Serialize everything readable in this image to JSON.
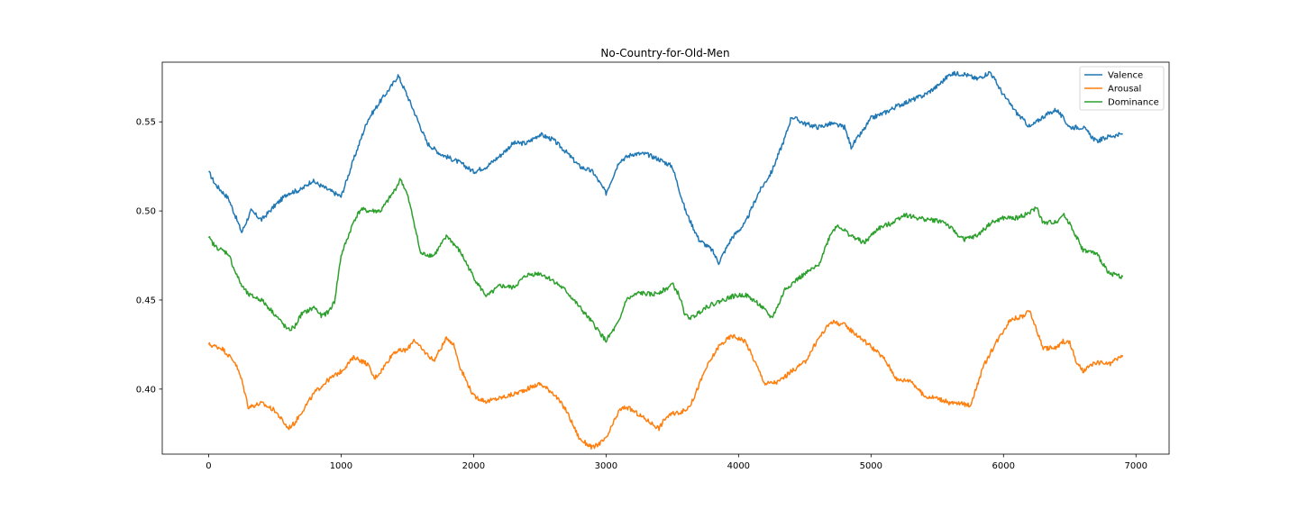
{
  "chart_data": {
    "type": "line",
    "title": "No-Country-for-Old-Men",
    "xlim": [
      -350,
      7250
    ],
    "ylim": [
      0.3635,
      0.5835
    ],
    "xticks": [
      0,
      1000,
      2000,
      3000,
      4000,
      5000,
      6000,
      7000
    ],
    "xtick_labels": [
      "0",
      "1000",
      "2000",
      "3000",
      "4000",
      "5000",
      "6000",
      "7000"
    ],
    "yticks": [
      0.4,
      0.45,
      0.5,
      0.55
    ],
    "ytick_labels": [
      "0.40",
      "0.45",
      "0.50",
      "0.55"
    ],
    "grid": false,
    "legend_position": "top-right",
    "series": [
      {
        "name": "Valence",
        "color": "#1f77b4",
        "x": [
          0,
          50,
          150,
          250,
          320,
          400,
          500,
          600,
          700,
          780,
          900,
          1000,
          1100,
          1200,
          1300,
          1380,
          1430,
          1480,
          1550,
          1650,
          1750,
          1900,
          2000,
          2100,
          2200,
          2300,
          2400,
          2500,
          2600,
          2700,
          2800,
          2900,
          3000,
          3100,
          3200,
          3300,
          3400,
          3500,
          3600,
          3700,
          3800,
          3850,
          3950,
          4050,
          4150,
          4250,
          4350,
          4400,
          4500,
          4600,
          4700,
          4800,
          4850,
          4950,
          5000,
          5100,
          5200,
          5300,
          5400,
          5500,
          5600,
          5700,
          5800,
          5900,
          6000,
          6100,
          6200,
          6300,
          6400,
          6500,
          6600,
          6700,
          6800,
          6900
        ],
        "y": [
          0.522,
          0.515,
          0.507,
          0.488,
          0.5,
          0.495,
          0.503,
          0.51,
          0.512,
          0.517,
          0.512,
          0.508,
          0.53,
          0.551,
          0.562,
          0.57,
          0.576,
          0.568,
          0.556,
          0.538,
          0.532,
          0.527,
          0.522,
          0.525,
          0.531,
          0.538,
          0.538,
          0.543,
          0.54,
          0.533,
          0.525,
          0.522,
          0.51,
          0.528,
          0.532,
          0.532,
          0.529,
          0.525,
          0.5,
          0.484,
          0.478,
          0.471,
          0.485,
          0.493,
          0.51,
          0.522,
          0.541,
          0.553,
          0.549,
          0.547,
          0.549,
          0.547,
          0.536,
          0.546,
          0.552,
          0.555,
          0.559,
          0.562,
          0.565,
          0.57,
          0.577,
          0.577,
          0.574,
          0.578,
          0.565,
          0.555,
          0.547,
          0.553,
          0.557,
          0.547,
          0.547,
          0.539,
          0.542,
          0.543
        ]
      },
      {
        "name": "Arousal",
        "color": "#ff7f0e",
        "x": [
          0,
          50,
          100,
          200,
          250,
          300,
          400,
          500,
          600,
          650,
          700,
          800,
          900,
          1000,
          1100,
          1200,
          1250,
          1300,
          1400,
          1500,
          1550,
          1600,
          1700,
          1800,
          1850,
          1900,
          2000,
          2100,
          2200,
          2300,
          2400,
          2500,
          2600,
          2700,
          2800,
          2900,
          3000,
          3100,
          3150,
          3200,
          3300,
          3400,
          3450,
          3500,
          3600,
          3650,
          3750,
          3850,
          3950,
          4050,
          4150,
          4200,
          4300,
          4400,
          4500,
          4600,
          4700,
          4800,
          4900,
          5000,
          5100,
          5200,
          5300,
          5400,
          5500,
          5600,
          5650,
          5750,
          5850,
          5950,
          6050,
          6150,
          6200,
          6250,
          6300,
          6400,
          6450,
          6500,
          6550,
          6600,
          6700,
          6800,
          6900
        ],
        "y": [
          0.425,
          0.424,
          0.423,
          0.415,
          0.405,
          0.39,
          0.392,
          0.388,
          0.378,
          0.381,
          0.387,
          0.398,
          0.405,
          0.41,
          0.418,
          0.414,
          0.406,
          0.41,
          0.421,
          0.422,
          0.428,
          0.423,
          0.416,
          0.429,
          0.425,
          0.412,
          0.396,
          0.393,
          0.395,
          0.397,
          0.4,
          0.403,
          0.398,
          0.388,
          0.372,
          0.367,
          0.372,
          0.388,
          0.39,
          0.388,
          0.383,
          0.378,
          0.384,
          0.386,
          0.388,
          0.393,
          0.411,
          0.424,
          0.43,
          0.427,
          0.411,
          0.403,
          0.404,
          0.41,
          0.415,
          0.428,
          0.438,
          0.436,
          0.43,
          0.424,
          0.417,
          0.405,
          0.405,
          0.396,
          0.395,
          0.392,
          0.392,
          0.391,
          0.413,
          0.427,
          0.439,
          0.441,
          0.444,
          0.433,
          0.423,
          0.423,
          0.427,
          0.426,
          0.415,
          0.41,
          0.415,
          0.414,
          0.419
        ]
      },
      {
        "name": "Dominance",
        "color": "#2ca02c",
        "x": [
          0,
          50,
          150,
          200,
          250,
          300,
          400,
          500,
          600,
          650,
          700,
          800,
          850,
          900,
          950,
          1000,
          1100,
          1150,
          1200,
          1300,
          1400,
          1450,
          1500,
          1550,
          1600,
          1700,
          1800,
          1900,
          2000,
          2050,
          2100,
          2200,
          2300,
          2400,
          2500,
          2600,
          2700,
          2800,
          2900,
          3000,
          3100,
          3150,
          3250,
          3350,
          3450,
          3500,
          3550,
          3600,
          3650,
          3750,
          3850,
          3950,
          4050,
          4150,
          4250,
          4300,
          4350,
          4450,
          4550,
          4600,
          4700,
          4750,
          4850,
          4950,
          5050,
          5150,
          5250,
          5350,
          5450,
          5550,
          5650,
          5700,
          5800,
          5900,
          6000,
          6100,
          6200,
          6250,
          6300,
          6400,
          6450,
          6500,
          6600,
          6700,
          6800,
          6900
        ],
        "y": [
          0.485,
          0.48,
          0.476,
          0.466,
          0.458,
          0.453,
          0.45,
          0.442,
          0.433,
          0.435,
          0.442,
          0.446,
          0.441,
          0.443,
          0.449,
          0.475,
          0.495,
          0.501,
          0.5,
          0.5,
          0.511,
          0.518,
          0.509,
          0.494,
          0.476,
          0.475,
          0.486,
          0.477,
          0.463,
          0.457,
          0.452,
          0.458,
          0.457,
          0.464,
          0.465,
          0.461,
          0.455,
          0.446,
          0.437,
          0.427,
          0.438,
          0.45,
          0.454,
          0.453,
          0.456,
          0.459,
          0.453,
          0.441,
          0.44,
          0.446,
          0.449,
          0.452,
          0.453,
          0.448,
          0.44,
          0.447,
          0.456,
          0.462,
          0.467,
          0.469,
          0.488,
          0.492,
          0.486,
          0.482,
          0.49,
          0.493,
          0.498,
          0.496,
          0.495,
          0.494,
          0.487,
          0.484,
          0.486,
          0.493,
          0.496,
          0.496,
          0.499,
          0.502,
          0.493,
          0.494,
          0.498,
          0.493,
          0.478,
          0.476,
          0.465,
          0.463
        ]
      }
    ]
  }
}
